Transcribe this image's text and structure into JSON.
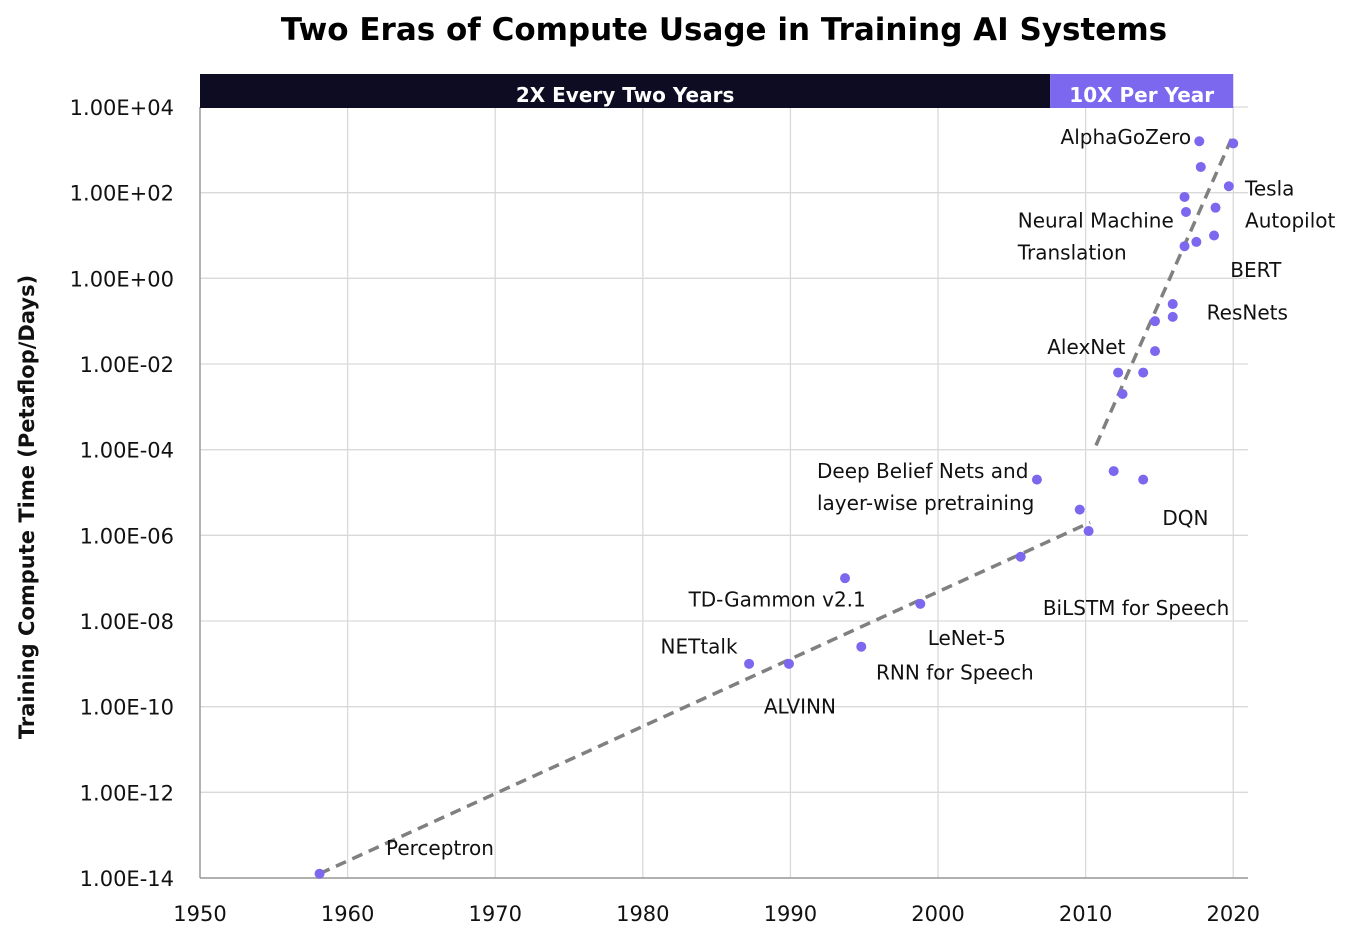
{
  "chart_data": {
    "type": "scatter",
    "title": "Two Eras of Compute Usage in Training AI Systems",
    "ylabel": "Training Compute Time (Petaflop/Days)",
    "xlabel": "",
    "xlim": [
      1950,
      2021
    ],
    "ylim_log10": [
      -14,
      4
    ],
    "y_scale": "log",
    "grid": true,
    "x_ticks": [
      1950,
      1960,
      1970,
      1980,
      1990,
      2000,
      2010,
      2020
    ],
    "y_ticks": [
      "1.00E+04",
      "1.00E+02",
      "1.00E+00",
      "1.00E-02",
      "1.00E-04",
      "1.00E-06",
      "1.00E-08",
      "1.00E-10",
      "1.00E-12",
      "1.00E-14"
    ],
    "y_tick_exponents": [
      4,
      2,
      0,
      -2,
      -4,
      -6,
      -8,
      -10,
      -12,
      -14
    ],
    "eras": [
      {
        "label": "2X Every Two Years",
        "x_start": 1950,
        "x_end": 2007.6,
        "color": "#0e0c22"
      },
      {
        "label": "10X Per Year",
        "x_start": 2007.6,
        "x_end": 2020,
        "color": "#7b68ee"
      }
    ],
    "points": [
      {
        "x": 1958.1,
        "log10_y": -13.9
      },
      {
        "x": 1987.2,
        "log10_y": -9.0
      },
      {
        "x": 1989.9,
        "log10_y": -9.0
      },
      {
        "x": 1993.7,
        "log10_y": -7.0
      },
      {
        "x": 1994.8,
        "log10_y": -8.6
      },
      {
        "x": 1998.8,
        "log10_y": -7.6
      },
      {
        "x": 2005.6,
        "log10_y": -6.5
      },
      {
        "x": 2006.7,
        "log10_y": -4.7
      },
      {
        "x": 2009.6,
        "log10_y": -5.4
      },
      {
        "x": 2010.2,
        "log10_y": -5.9
      },
      {
        "x": 2011.9,
        "log10_y": -4.5
      },
      {
        "x": 2013.9,
        "log10_y": -4.7
      },
      {
        "x": 2012.2,
        "log10_y": -2.2
      },
      {
        "x": 2012.5,
        "log10_y": -2.7
      },
      {
        "x": 2013.9,
        "log10_y": -2.2
      },
      {
        "x": 2014.7,
        "log10_y": -1.7
      },
      {
        "x": 2014.7,
        "log10_y": -1.0
      },
      {
        "x": 2015.9,
        "log10_y": -0.6
      },
      {
        "x": 2015.9,
        "log10_y": -0.9
      },
      {
        "x": 2016.7,
        "log10_y": 0.75
      },
      {
        "x": 2017.5,
        "log10_y": 0.85
      },
      {
        "x": 2018.7,
        "log10_y": 1.0
      },
      {
        "x": 2016.8,
        "log10_y": 1.55
      },
      {
        "x": 2016.7,
        "log10_y": 1.9
      },
      {
        "x": 2018.8,
        "log10_y": 1.65
      },
      {
        "x": 2019.7,
        "log10_y": 2.15
      },
      {
        "x": 2017.8,
        "log10_y": 2.6
      },
      {
        "x": 2017.7,
        "log10_y": 3.2
      },
      {
        "x": 2020.0,
        "log10_y": 3.15
      }
    ],
    "trend_lines": [
      {
        "x": [
          1958.1,
          2010.3
        ],
        "log10_y": [
          -13.9,
          -5.7
        ]
      },
      {
        "x": [
          2010.7,
          2020.0
        ],
        "log10_y": [
          -3.9,
          3.35
        ]
      }
    ],
    "annotations": [
      {
        "text": "Perceptron",
        "x": 1962.6,
        "log10_y": -13.3
      },
      {
        "text": "NETtalk",
        "x": 1981.2,
        "log10_y": -8.6
      },
      {
        "text": "ALVINN",
        "x": 1988.2,
        "log10_y": -10.0
      },
      {
        "text": "TD-Gammon v2.1",
        "x": 1983.1,
        "log10_y": -7.5
      },
      {
        "text": "RNN for Speech",
        "x": 1995.8,
        "log10_y": -9.2
      },
      {
        "text": "LeNet-5",
        "x": 1999.3,
        "log10_y": -8.4
      },
      {
        "text": "Deep Belief Nets and",
        "x": 1991.8,
        "log10_y": -4.5
      },
      {
        "text": "layer-wise pretraining",
        "x": 1991.8,
        "log10_y": -5.25
      },
      {
        "text": "BiLSTM for Speech",
        "x": 2007.1,
        "log10_y": -7.7
      },
      {
        "text": "DQN",
        "x": 2015.2,
        "log10_y": -5.6
      },
      {
        "text": "AlexNet",
        "x": 2007.4,
        "log10_y": -1.6
      },
      {
        "text": "ResNets",
        "x": 2018.2,
        "log10_y": -0.8
      },
      {
        "text": "Neural Machine",
        "x": 2005.4,
        "log10_y": 1.35
      },
      {
        "text": "Translation",
        "x": 2005.4,
        "log10_y": 0.6
      },
      {
        "text": "BERT",
        "x": 2019.8,
        "log10_y": 0.2
      },
      {
        "text": "Tesla",
        "x": 2020.8,
        "log10_y": 2.1
      },
      {
        "text": "Autopilot",
        "x": 2020.8,
        "log10_y": 1.35
      },
      {
        "text": "AlphaGoZero",
        "x": 2008.3,
        "log10_y": 3.3
      }
    ]
  }
}
